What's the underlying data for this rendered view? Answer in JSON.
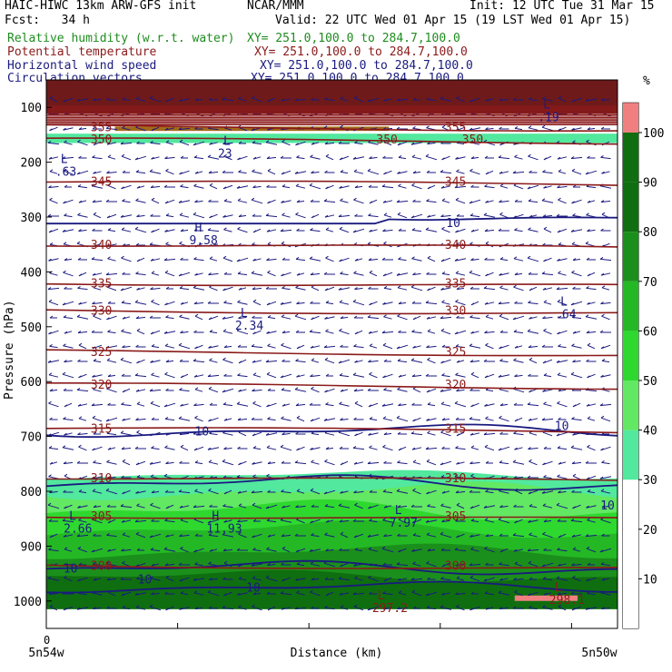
{
  "header": {
    "model": "HAIC-HIWC 13km ARW-GFS init",
    "org": "NCAR/MMM",
    "init": "Init: 12 UTC Tue 31 Mar 15",
    "fcst": "Fcst:   34 h",
    "valid": "Valid: 22 UTC Wed 01 Apr 15 (19 LST Wed 01 Apr 15)"
  },
  "fields": [
    {
      "name": "Relative humidity (w.r.t. water)",
      "xy": "XY= 251.0,100.0 to 284.7,100.0",
      "color": "#1e8c1e"
    },
    {
      "name": "Potential temperature",
      "xy": "XY= 251.0,100.0 to 284.7,100.0",
      "color": "#8b1a1a"
    },
    {
      "name": "Horizontal wind speed",
      "xy": "XY= 251.0,100.0 to 284.7,100.0",
      "color": "#1a1a80"
    },
    {
      "name": "Circulation vectors",
      "xy": "XY= 251.0,100.0 to 284.7,100.0",
      "color": "#1a1a80"
    }
  ],
  "chart_data": {
    "type": "cross-section",
    "y_axis": {
      "label": "Pressure (hPa)",
      "range": [
        1050,
        50
      ],
      "ticks": [
        100,
        200,
        300,
        400,
        500,
        600,
        700,
        800,
        900,
        1000
      ]
    },
    "x_axis": {
      "label": "Distance (km)",
      "start_tick": "0",
      "left_label": "5n54w",
      "right_label": "5n50w"
    },
    "colorbar": {
      "unit": "%",
      "levels": [
        10,
        20,
        30,
        40,
        50,
        60,
        70,
        80,
        90,
        100
      ],
      "colors": {
        "50": "#52e89e",
        "60": "#62e862",
        "70": "#2fd82f",
        "80": "#25b825",
        "90": "#1b8f1b",
        "100": "#0f6e0f",
        "top": "#f08080"
      }
    },
    "theta_contours": [
      {
        "value": 300,
        "p": 935,
        "labels": [
          "300",
          "300"
        ]
      },
      {
        "value": 305,
        "p": 845,
        "labels": [
          "305",
          "305"
        ]
      },
      {
        "value": 310,
        "p": 775,
        "labels": [
          "310",
          "310"
        ]
      },
      {
        "value": 315,
        "p": 685,
        "labels": [
          "315",
          "315"
        ]
      },
      {
        "value": 320,
        "p": 605,
        "labels": [
          "320",
          "320"
        ]
      },
      {
        "value": 325,
        "p": 545,
        "labels": [
          "325",
          "325"
        ]
      },
      {
        "value": 330,
        "p": 470,
        "labels": [
          "330",
          "330"
        ]
      },
      {
        "value": 335,
        "p": 420,
        "labels": [
          "335",
          "335"
        ]
      },
      {
        "value": 340,
        "p": 350,
        "labels": [
          "340",
          "340"
        ]
      },
      {
        "value": 345,
        "p": 235,
        "labels": [
          "345",
          "345"
        ]
      },
      {
        "value": 350,
        "p": 158,
        "labels": [
          "350",
          "350",
          "350"
        ]
      },
      {
        "value": 355,
        "p": 135,
        "labels": [
          "355",
          "355"
        ]
      }
    ],
    "extrema": [
      {
        "type": "L",
        "value": ".19",
        "x": 0.87,
        "p": 115
      },
      {
        "type": "L",
        "value": "23",
        "x": 0.31,
        "p": 182
      },
      {
        "type": "L",
        "value": ".63",
        "x": 0.025,
        "p": 215
      },
      {
        "type": "H",
        "value": "9.58",
        "x": 0.26,
        "p": 340
      },
      {
        "type": "L",
        "value": "2.34",
        "x": 0.34,
        "p": 495
      },
      {
        "type": "L",
        "value": ".64",
        "x": 0.9,
        "p": 475
      },
      {
        "type": "L",
        "value": "2.66",
        "x": 0.04,
        "p": 865
      },
      {
        "type": "H",
        "value": "11.93",
        "x": 0.29,
        "p": 865
      },
      {
        "type": "L",
        "value": "7.97",
        "x": 0.61,
        "p": 855
      },
      {
        "type": "L",
        "value": "298.1",
        "x": 0.89,
        "p": 995
      },
      {
        "type": "L",
        "value": "297.2",
        "x": 0.58,
        "p": 1010
      }
    ],
    "wind_labels": [
      {
        "text": "10",
        "x": 0.7,
        "p": 310
      },
      {
        "text": "10",
        "x": 0.26,
        "p": 690
      },
      {
        "text": "10",
        "x": 0.89,
        "p": 680
      },
      {
        "text": "10",
        "x": 0.97,
        "p": 825
      },
      {
        "text": "10",
        "x": 0.03,
        "p": 940
      },
      {
        "text": "10",
        "x": 0.16,
        "p": 960
      },
      {
        "text": "10",
        "x": 0.35,
        "p": 975
      }
    ]
  }
}
